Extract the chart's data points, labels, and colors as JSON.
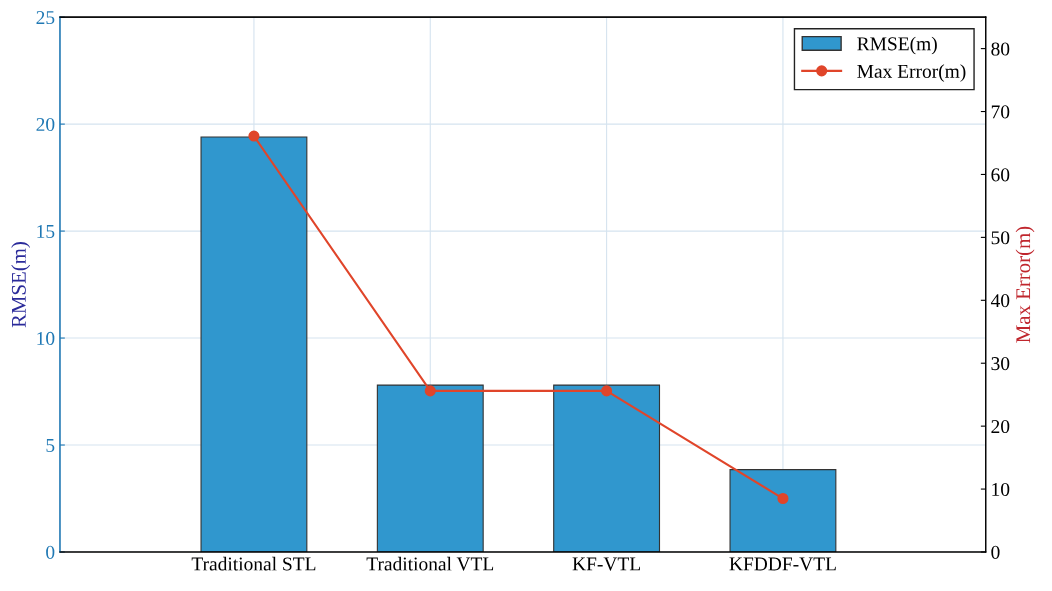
{
  "chart_data": {
    "type": "bar",
    "categories": [
      "Traditional STL",
      "Traditional VTL",
      "KF-VTL",
      "KFDDF-VTL"
    ],
    "ylabel": "RMSE(m)",
    "y2label": "Max Error(m)",
    "ylim": [
      0,
      25
    ],
    "yticks": [
      0,
      5,
      10,
      15,
      20,
      25
    ],
    "y2lim": [
      0,
      85
    ],
    "y2ticks": [
      0,
      10,
      20,
      30,
      40,
      50,
      60,
      70,
      80
    ],
    "grid": true,
    "legend": "top right",
    "series": [
      {
        "name": "RMSE(m)",
        "color": "#3097ce",
        "values": [
          19.4,
          7.8,
          7.8,
          3.85
        ]
      },
      {
        "name": "Max Error(m)",
        "type": "line",
        "axis": "y2",
        "color": "#e0452a",
        "marker": "circle",
        "line_style": "solid",
        "values": [
          66.1,
          25.6,
          25.6,
          8.5
        ]
      }
    ]
  }
}
